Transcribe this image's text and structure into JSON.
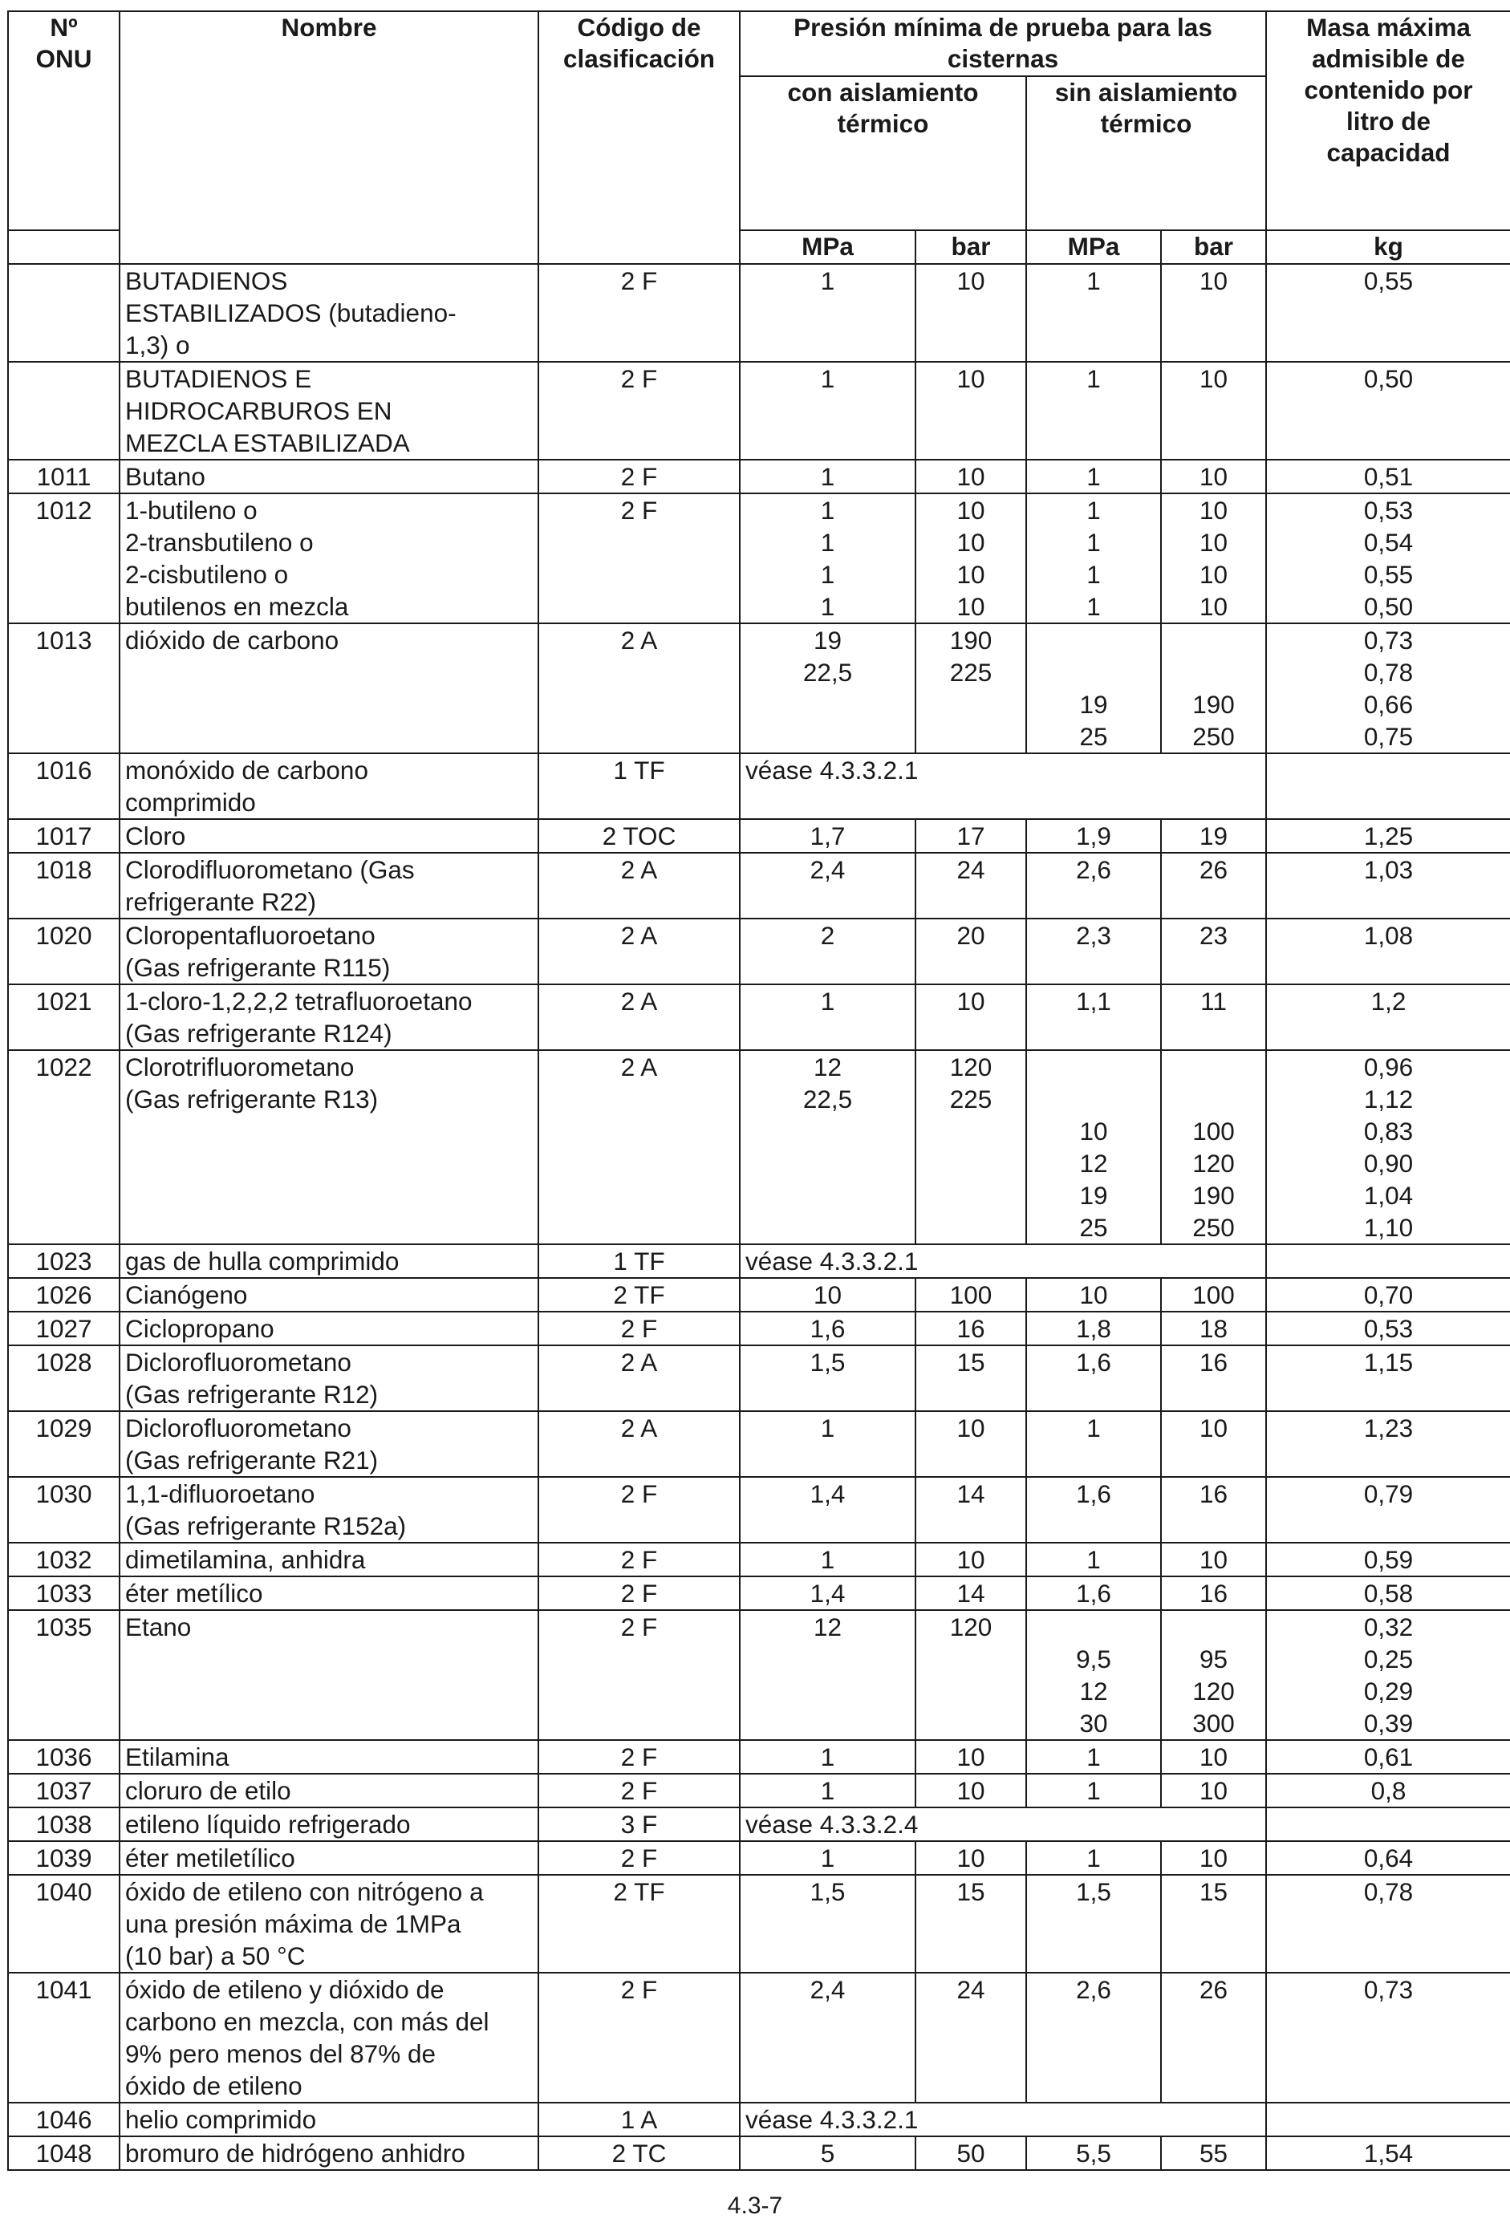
{
  "header": {
    "un_number": [
      "Nº",
      "ONU"
    ],
    "name": "Nombre",
    "classification": [
      "Código de",
      "clasificación"
    ],
    "pressure_group": [
      "Presión mínima de prueba para las",
      "cisternas"
    ],
    "insulated": [
      "con aislamiento",
      "térmico"
    ],
    "uninsulated": [
      "sin aislamiento",
      "térmico"
    ],
    "max_mass": [
      "Masa máxima",
      "admisible de",
      "contenido por",
      "litro de",
      "capacidad"
    ],
    "units": {
      "mpa_1": "MPa",
      "bar_1": "bar",
      "mpa_2": "MPa",
      "bar_2": "bar",
      "kg": "kg"
    }
  },
  "rows": [
    {
      "un": "",
      "name": [
        "BUTADIENOS",
        "ESTABILIZADOS (butadieno-",
        "1,3) o"
      ],
      "code": "2 F",
      "mpa_ins": [
        "1"
      ],
      "bar_ins": [
        "10"
      ],
      "mpa_unins": [
        "1"
      ],
      "bar_unins": [
        "10"
      ],
      "kg": [
        "0,55"
      ]
    },
    {
      "un": "",
      "name": [
        "BUTADIENOS E",
        "HIDROCARBUROS EN",
        "MEZCLA ESTABILIZADA"
      ],
      "code": "2 F",
      "mpa_ins": [
        "1"
      ],
      "bar_ins": [
        "10"
      ],
      "mpa_unins": [
        "1"
      ],
      "bar_unins": [
        "10"
      ],
      "kg": [
        "0,50"
      ]
    },
    {
      "un": "1011",
      "name": [
        "Butano"
      ],
      "code": "2 F",
      "mpa_ins": [
        "1"
      ],
      "bar_ins": [
        "10"
      ],
      "mpa_unins": [
        "1"
      ],
      "bar_unins": [
        "10"
      ],
      "kg": [
        "0,51"
      ]
    },
    {
      "un": "1012",
      "name": [
        "1-butileno o",
        "2-transbutileno o",
        "2-cisbutileno o",
        "butilenos en mezcla"
      ],
      "code": "2 F",
      "mpa_ins": [
        "1",
        "1",
        "1",
        "1"
      ],
      "bar_ins": [
        "10",
        "10",
        "10",
        "10"
      ],
      "mpa_unins": [
        "1",
        "1",
        "1",
        "1"
      ],
      "bar_unins": [
        "10",
        "10",
        "10",
        "10"
      ],
      "kg": [
        "0,53",
        "0,54",
        "0,55",
        "0,50"
      ]
    },
    {
      "un": "1013",
      "name": [
        "dióxido de carbono"
      ],
      "code": "2 A",
      "mpa_ins": [
        "19",
        "22,5",
        "",
        ""
      ],
      "bar_ins": [
        "190",
        "225",
        "",
        ""
      ],
      "mpa_unins": [
        "",
        "",
        "19",
        "25"
      ],
      "bar_unins": [
        "",
        "",
        "190",
        "250"
      ],
      "kg": [
        "0,73",
        "0,78",
        "0,66",
        "0,75"
      ]
    },
    {
      "un": "1016",
      "name": [
        "monóxido de carbono",
        "comprimido"
      ],
      "code": "1 TF",
      "ref": "véase 4.3.3.2.1"
    },
    {
      "un": "1017",
      "name": [
        "Cloro"
      ],
      "code": "2 TOC",
      "mpa_ins": [
        "1,7"
      ],
      "bar_ins": [
        "17"
      ],
      "mpa_unins": [
        "1,9"
      ],
      "bar_unins": [
        "19"
      ],
      "kg": [
        "1,25"
      ]
    },
    {
      "un": "1018",
      "name": [
        "Clorodifluorometano (Gas",
        "refrigerante R22)"
      ],
      "code": "2 A",
      "mpa_ins": [
        "2,4"
      ],
      "bar_ins": [
        "24"
      ],
      "mpa_unins": [
        "2,6"
      ],
      "bar_unins": [
        "26"
      ],
      "kg": [
        "1,03"
      ]
    },
    {
      "un": "1020",
      "name": [
        "Cloropentafluoroetano",
        "(Gas refrigerante R115)"
      ],
      "code": "2 A",
      "mpa_ins": [
        "2"
      ],
      "bar_ins": [
        "20"
      ],
      "mpa_unins": [
        "2,3"
      ],
      "bar_unins": [
        "23"
      ],
      "kg": [
        "1,08"
      ]
    },
    {
      "un": "1021",
      "name": [
        "1-cloro-1,2,2,2 tetrafluoroetano",
        "(Gas refrigerante R124)"
      ],
      "code": "2 A",
      "mpa_ins": [
        "1"
      ],
      "bar_ins": [
        "10"
      ],
      "mpa_unins": [
        "1,1"
      ],
      "bar_unins": [
        "11"
      ],
      "kg": [
        "1,2"
      ]
    },
    {
      "un": "1022",
      "name": [
        "Clorotrifluorometano",
        "(Gas refrigerante R13)"
      ],
      "code": "2 A",
      "mpa_ins": [
        "12",
        "22,5",
        "",
        "",
        "",
        ""
      ],
      "bar_ins": [
        "120",
        "225",
        "",
        "",
        "",
        ""
      ],
      "mpa_unins": [
        "",
        "",
        "10",
        "12",
        "19",
        "25"
      ],
      "bar_unins": [
        "",
        "",
        "100",
        "120",
        "190",
        "250"
      ],
      "kg": [
        "0,96",
        "1,12",
        "0,83",
        "0,90",
        "1,04",
        "1,10"
      ]
    },
    {
      "un": "1023",
      "name": [
        "gas de hulla comprimido"
      ],
      "code": "1 TF",
      "ref": "véase 4.3.3.2.1"
    },
    {
      "un": "1026",
      "name": [
        "Cianógeno"
      ],
      "code": "2 TF",
      "mpa_ins": [
        "10"
      ],
      "bar_ins": [
        "100"
      ],
      "mpa_unins": [
        "10"
      ],
      "bar_unins": [
        "100"
      ],
      "kg": [
        "0,70"
      ]
    },
    {
      "un": "1027",
      "name": [
        "Ciclopropano"
      ],
      "code": "2 F",
      "mpa_ins": [
        "1,6"
      ],
      "bar_ins": [
        "16"
      ],
      "mpa_unins": [
        "1,8"
      ],
      "bar_unins": [
        "18"
      ],
      "kg": [
        "0,53"
      ]
    },
    {
      "un": "1028",
      "name": [
        "Diclorofluorometano",
        "(Gas refrigerante R12)"
      ],
      "code": "2 A",
      "mpa_ins": [
        "1,5"
      ],
      "bar_ins": [
        "15"
      ],
      "mpa_unins": [
        "1,6"
      ],
      "bar_unins": [
        "16"
      ],
      "kg": [
        "1,15"
      ]
    },
    {
      "un": "1029",
      "name": [
        "Diclorofluorometano",
        "(Gas refrigerante R21)"
      ],
      "code": "2 A",
      "mpa_ins": [
        "1"
      ],
      "bar_ins": [
        "10"
      ],
      "mpa_unins": [
        "1"
      ],
      "bar_unins": [
        "10"
      ],
      "kg": [
        "1,23"
      ]
    },
    {
      "un": "1030",
      "name": [
        "1,1-difluoroetano",
        "(Gas refrigerante R152a)"
      ],
      "code": "2 F",
      "mpa_ins": [
        "1,4"
      ],
      "bar_ins": [
        "14"
      ],
      "mpa_unins": [
        "1,6"
      ],
      "bar_unins": [
        "16"
      ],
      "kg": [
        "0,79"
      ]
    },
    {
      "un": "1032",
      "name": [
        "dimetilamina, anhidra"
      ],
      "code": "2 F",
      "mpa_ins": [
        "1"
      ],
      "bar_ins": [
        "10"
      ],
      "mpa_unins": [
        "1"
      ],
      "bar_unins": [
        "10"
      ],
      "kg": [
        "0,59"
      ]
    },
    {
      "un": "1033",
      "name": [
        "éter metílico"
      ],
      "code": "2 F",
      "mpa_ins": [
        "1,4"
      ],
      "bar_ins": [
        "14"
      ],
      "mpa_unins": [
        "1,6"
      ],
      "bar_unins": [
        "16"
      ],
      "kg": [
        "0,58"
      ]
    },
    {
      "un": "1035",
      "name": [
        "Etano"
      ],
      "code": "2 F",
      "mpa_ins": [
        "12",
        "",
        "",
        ""
      ],
      "bar_ins": [
        "120",
        "",
        "",
        ""
      ],
      "mpa_unins": [
        "",
        "9,5",
        "12",
        "30"
      ],
      "bar_unins": [
        "",
        "95",
        "120",
        "300"
      ],
      "kg": [
        "0,32",
        "0,25",
        "0,29",
        "0,39"
      ]
    },
    {
      "un": "1036",
      "name": [
        "Etilamina"
      ],
      "code": "2 F",
      "mpa_ins": [
        "1"
      ],
      "bar_ins": [
        "10"
      ],
      "mpa_unins": [
        "1"
      ],
      "bar_unins": [
        "10"
      ],
      "kg": [
        "0,61"
      ]
    },
    {
      "un": "1037",
      "name": [
        "cloruro de etilo"
      ],
      "code": "2 F",
      "mpa_ins": [
        "1"
      ],
      "bar_ins": [
        "10"
      ],
      "mpa_unins": [
        "1"
      ],
      "bar_unins": [
        "10"
      ],
      "kg": [
        "0,8"
      ]
    },
    {
      "un": "1038",
      "name": [
        "etileno líquido refrigerado"
      ],
      "code": "3 F",
      "ref": "véase 4.3.3.2.4"
    },
    {
      "un": "1039",
      "name": [
        "éter metiletílico"
      ],
      "code": "2 F",
      "mpa_ins": [
        "1"
      ],
      "bar_ins": [
        "10"
      ],
      "mpa_unins": [
        "1"
      ],
      "bar_unins": [
        "10"
      ],
      "kg": [
        "0,64"
      ]
    },
    {
      "un": "1040",
      "name": [
        "óxido de etileno con nitrógeno a",
        "una presión máxima de 1MPa",
        "(10 bar) a 50 °C"
      ],
      "code": "2 TF",
      "mpa_ins": [
        "1,5"
      ],
      "bar_ins": [
        "15"
      ],
      "mpa_unins": [
        "1,5"
      ],
      "bar_unins": [
        "15"
      ],
      "kg": [
        "0,78"
      ]
    },
    {
      "un": "1041",
      "name": [
        "óxido de etileno y dióxido de",
        "carbono en mezcla, con más del",
        "9% pero menos del 87% de",
        "óxido de etileno"
      ],
      "code": "2 F",
      "mpa_ins": [
        "2,4"
      ],
      "bar_ins": [
        "24"
      ],
      "mpa_unins": [
        "2,6"
      ],
      "bar_unins": [
        "26"
      ],
      "kg": [
        "0,73"
      ]
    },
    {
      "un": "1046",
      "name": [
        "helio comprimido"
      ],
      "code": "1 A",
      "ref": "véase 4.3.3.2.1"
    },
    {
      "un": "1048",
      "name": [
        "bromuro de hidrógeno anhidro"
      ],
      "code": "2 TC",
      "mpa_ins": [
        "5"
      ],
      "bar_ins": [
        "50"
      ],
      "mpa_unins": [
        "5,5"
      ],
      "bar_unins": [
        "55"
      ],
      "kg": [
        "1,54"
      ]
    }
  ],
  "footer": {
    "page_number": "4.3-7"
  }
}
